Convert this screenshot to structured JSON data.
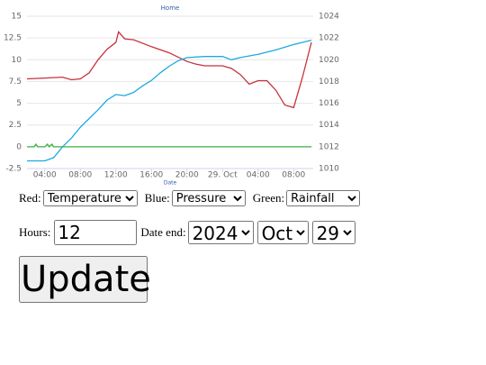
{
  "chart_data": {
    "type": "line",
    "title": "Home",
    "x_label": "Date",
    "xlim": [
      2,
      34.2
    ],
    "xticks": [
      {
        "value": 4,
        "label": "04:00"
      },
      {
        "value": 8,
        "label": "08:00"
      },
      {
        "value": 12,
        "label": "12:00"
      },
      {
        "value": 16,
        "label": "16:00"
      },
      {
        "value": 20,
        "label": "20:00"
      },
      {
        "value": 24,
        "label": "29. Oct"
      },
      {
        "value": 28,
        "label": "04:00"
      },
      {
        "value": 32,
        "label": "08:00"
      }
    ],
    "ylim": [
      -2.5,
      15
    ],
    "yticks": [
      -2.5,
      0,
      2.5,
      5,
      7.5,
      10,
      12.5,
      15
    ],
    "y2lim": [
      1010,
      1024
    ],
    "y2ticks": [
      1010,
      1012,
      1014,
      1016,
      1018,
      1020,
      1022,
      1024
    ],
    "grid": true,
    "series": [
      {
        "name": "Temperature",
        "color": "#c8313b",
        "x": [
          2,
          4,
          6,
          7,
          8,
          9,
          10,
          11,
          12,
          12.3,
          13,
          14,
          16,
          18,
          20,
          21,
          22,
          24,
          25,
          26,
          27,
          28,
          29,
          30,
          31,
          32,
          33,
          34
        ],
        "values": [
          7.8,
          7.9,
          8.0,
          7.7,
          7.8,
          8.5,
          10,
          11.2,
          12.0,
          13.2,
          12.4,
          12.3,
          11.5,
          10.8,
          9.8,
          9.5,
          9.3,
          9.3,
          9.0,
          8.3,
          7.2,
          7.6,
          7.6,
          6.5,
          4.8,
          4.5,
          8,
          12
        ]
      },
      {
        "name": "Pressure",
        "color": "#1fa9df",
        "axis": "y2",
        "x": [
          2,
          4,
          5,
          6,
          7,
          8,
          9,
          10,
          11,
          12,
          13,
          14,
          15,
          16,
          17,
          18,
          19,
          20,
          22,
          24,
          25,
          26,
          28,
          30,
          32,
          34
        ],
        "values": [
          1010.7,
          1010.7,
          1011,
          1012,
          1012.8,
          1013.8,
          1014.6,
          1015.4,
          1016.3,
          1016.8,
          1016.7,
          1017,
          1017.6,
          1018.1,
          1018.8,
          1019.4,
          1019.9,
          1020.2,
          1020.3,
          1020.3,
          1020,
          1020.2,
          1020.5,
          1020.9,
          1021.4,
          1021.8
        ]
      },
      {
        "name": "Rainfall",
        "color": "#3cb043",
        "x": [
          2,
          2.8,
          3,
          3.2,
          4,
          4.3,
          4.5,
          4.8,
          5,
          34
        ],
        "values": [
          0,
          0,
          0.3,
          0,
          0,
          0.3,
          0,
          0.3,
          0,
          0
        ]
      }
    ]
  },
  "controls": {
    "red_label": "Red:",
    "red_value": "Temperature",
    "blue_label": "Blue:",
    "blue_value": "Pressure",
    "green_label": "Green:",
    "green_value": "Rainfall",
    "hours_label": "Hours:",
    "hours_value": "12",
    "date_label": "Date end:",
    "year": "2024",
    "month": "Oct",
    "day": "29",
    "button": "Update"
  }
}
